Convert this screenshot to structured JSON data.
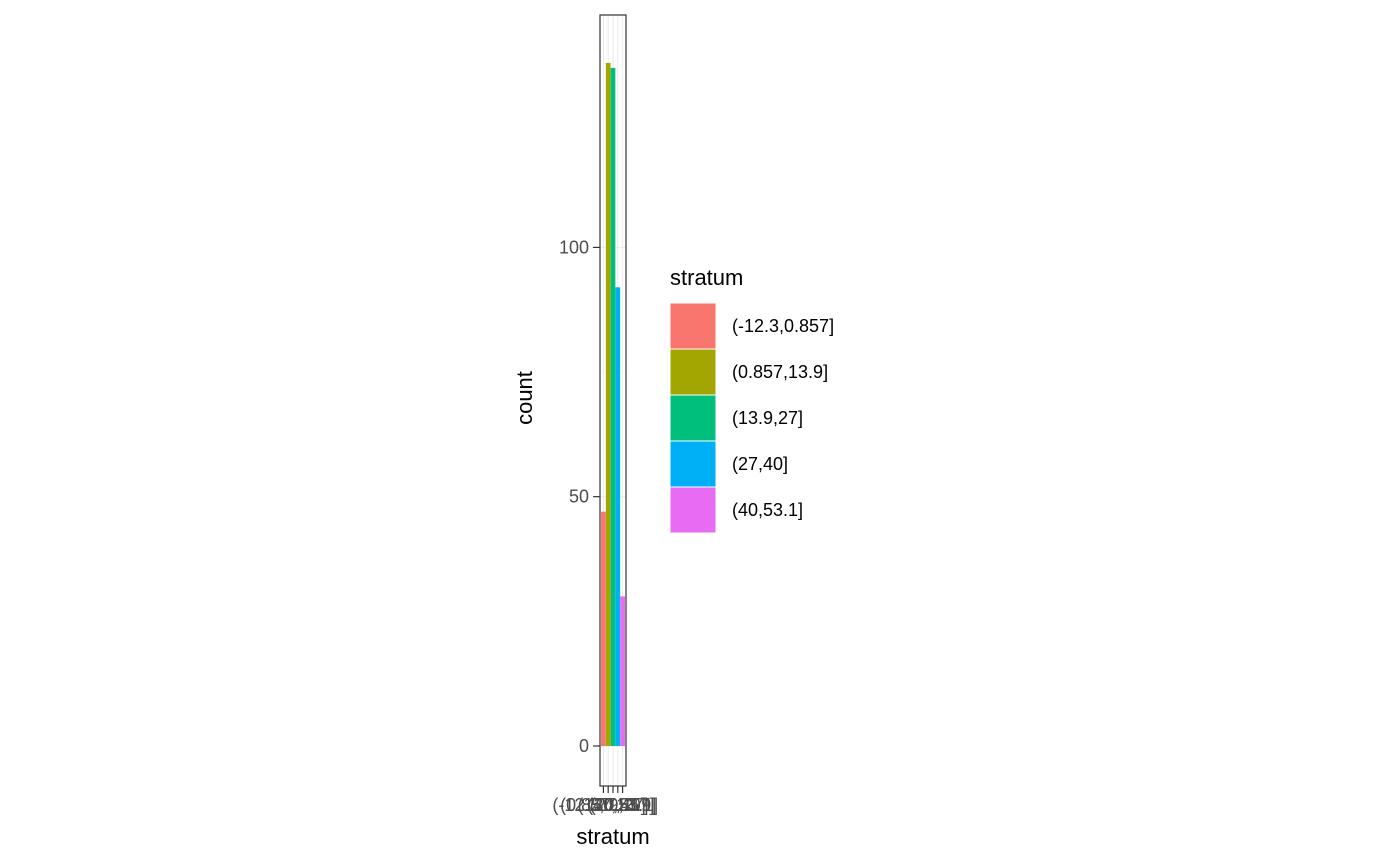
{
  "chart_data": {
    "type": "bar",
    "categories": [
      "(-12.3,0.857]",
      "(0.857,13.9]",
      "(13.9,27]",
      "(27,40]",
      "(40,53.1]"
    ],
    "values": [
      47,
      137,
      136,
      92,
      30
    ],
    "colors": [
      "#F8766D",
      "#A3A500",
      "#00BF7D",
      "#00B0F6",
      "#E76BF3"
    ],
    "xlabel": "stratum",
    "ylabel": "count",
    "ylim": [
      0,
      142
    ],
    "yticks": [
      0,
      50,
      100
    ],
    "grid": true,
    "legend": {
      "title": "stratum",
      "placement": "right",
      "entries": [
        "(-12.3,0.857]",
        "(0.857,13.9]",
        "(13.9,27]",
        "(27,40]",
        "(40,53.1]"
      ]
    }
  }
}
